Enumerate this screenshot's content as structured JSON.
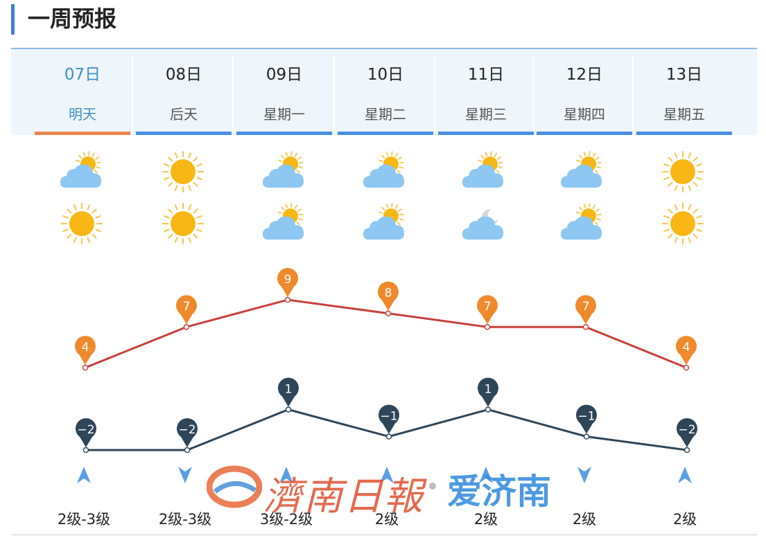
{
  "title": "一周预报",
  "days": [
    {
      "date": "07日",
      "dow": "明天",
      "active": true,
      "icon_day": "partly-cloudy",
      "icon_night": "sunny",
      "high": 4,
      "low": -2,
      "wind_dir": "up",
      "wind": "2级-3级"
    },
    {
      "date": "08日",
      "dow": "后天",
      "active": false,
      "icon_day": "sunny",
      "icon_night": "sunny",
      "high": 7,
      "low": -2,
      "wind_dir": "down",
      "wind": "2级-3级"
    },
    {
      "date": "09日",
      "dow": "星期一",
      "active": false,
      "icon_day": "partly-cloudy",
      "icon_night": "partly-cloudy",
      "high": 9,
      "low": 1,
      "wind_dir": "up",
      "wind": "3级-2级"
    },
    {
      "date": "10日",
      "dow": "星期二",
      "active": false,
      "icon_day": "partly-cloudy",
      "icon_night": "partly-cloudy",
      "high": 8,
      "low": -1,
      "wind_dir": "up",
      "wind": "2级"
    },
    {
      "date": "11日",
      "dow": "星期三",
      "active": false,
      "icon_day": "partly-cloudy",
      "icon_night": "cloudy-moon",
      "high": 7,
      "low": 1,
      "wind_dir": "up",
      "wind": "2级"
    },
    {
      "date": "12日",
      "dow": "星期四",
      "active": false,
      "icon_day": "partly-cloudy",
      "icon_night": "partly-cloudy",
      "high": 7,
      "low": -1,
      "wind_dir": "down",
      "wind": "2级"
    },
    {
      "date": "13日",
      "dow": "星期五",
      "active": false,
      "icon_day": "sunny",
      "icon_night": "sunny",
      "high": 4,
      "low": -2,
      "wind_dir": "up",
      "wind": "2级"
    }
  ],
  "chart_data": {
    "type": "line",
    "categories": [
      "07日",
      "08日",
      "09日",
      "10日",
      "11日",
      "12日",
      "13日"
    ],
    "series": [
      {
        "values": [
          4,
          7,
          9,
          8,
          7,
          7,
          4
        ],
        "color": "#c9403a",
        "marker_color": "#ef8a2c"
      },
      {
        "values": [
          -2,
          -2,
          1,
          -1,
          1,
          -1,
          -2
        ],
        "color": "#2f4558",
        "marker_color": "#2f4558"
      }
    ]
  },
  "watermark": {
    "paper": "濟南日報",
    "app": "爱济南"
  },
  "colors": {
    "accent": "#3d7fd1",
    "active_underline": "#e8894f",
    "tab_underline": "#4a8fe0"
  }
}
